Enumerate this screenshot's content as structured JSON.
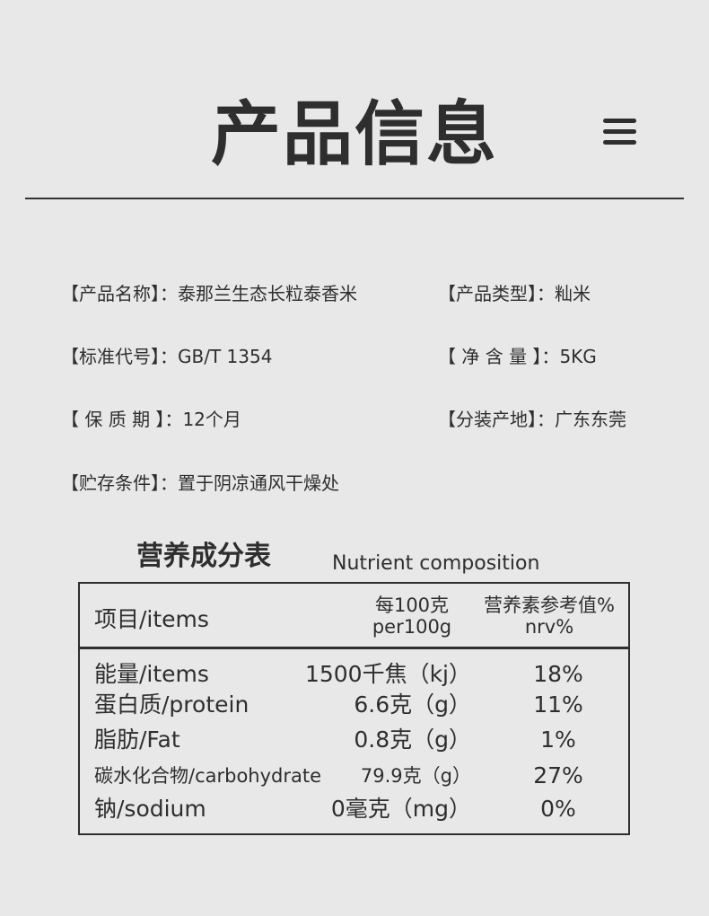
{
  "header": {
    "title": "产品信息",
    "menu_icon": "hamburger-menu-icon"
  },
  "info": [
    {
      "label": "【产品名称】：",
      "value": "泰那兰生态长粒泰香米"
    },
    {
      "label": "【产品类型】：",
      "value": "籼米"
    },
    {
      "label": "【标准代号】：",
      "value": "GB/T 1354"
    },
    {
      "label": "【 净 含 量 】：",
      "value": "5KG"
    },
    {
      "label": "【 保 质 期 】：",
      "value": "12个月"
    },
    {
      "label": "【分装产地】：",
      "value": "广东东莞"
    },
    {
      "label": "【贮存条件】：",
      "value": "置于阴凉通风干燥处"
    }
  ],
  "nutrition": {
    "title": "营养成分表",
    "subtitle": "Nutrient composition",
    "headers": {
      "item": "项目/items",
      "per_cn": "每100克",
      "per_en": "per100g",
      "nrv_cn": "营养素参考值%",
      "nrv_en": "nrv%"
    },
    "rows": [
      {
        "name": "能量/items",
        "amount": "1500千焦（kj）",
        "nrv": "18%"
      },
      {
        "name": "蛋白质/protein",
        "amount": "6.6克（g）",
        "nrv": "11%"
      },
      {
        "name": "脂肪/Fat",
        "amount": "0.8克（g）",
        "nrv": "1%"
      },
      {
        "name": "碳水化合物/carbohydrate",
        "amount": "79.9克（g）",
        "nrv": "27%"
      },
      {
        "name": "钠/sodium",
        "amount": "0毫克（mg）",
        "nrv": "0%"
      }
    ]
  }
}
